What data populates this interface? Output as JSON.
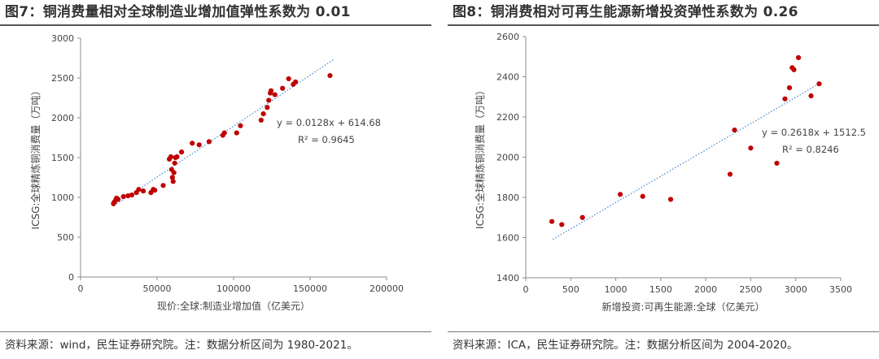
{
  "chart_data": [
    {
      "type": "scatter",
      "title": "图7：铜消费量相对全球制造业增加值弹性系数为 0.01",
      "xlabel": "现价:全球:制造业增加值（亿美元）",
      "ylabel": "ICSG:全球精炼铜消费量（万吨）",
      "xlim": [
        0,
        200000
      ],
      "ylim": [
        0,
        3000
      ],
      "x_ticks": [
        0,
        50000,
        100000,
        150000,
        200000
      ],
      "x_tick_labels": [
        "0",
        "50000",
        "100000",
        "150000",
        "200000"
      ],
      "y_ticks": [
        0,
        500,
        1000,
        1500,
        2000,
        2500,
        3000
      ],
      "y_tick_labels": [
        "0",
        "500",
        "1000",
        "1500",
        "2000",
        "2500",
        "3000"
      ],
      "trend_x_range": [
        22000,
        166000
      ],
      "trendline": {
        "slope": 0.0128,
        "intercept": 614.68
      },
      "equation": "y = 0.0128x + 614.68",
      "r_squared": "R² = 0.9645",
      "series": [
        {
          "name": "铜消费量",
          "color": "#c00000",
          "points": [
            [
              21500,
              920
            ],
            [
              22000,
              940
            ],
            [
              22800,
              960
            ],
            [
              23500,
              990
            ],
            [
              24500,
              975
            ],
            [
              28000,
              1010
            ],
            [
              31000,
              1020
            ],
            [
              33500,
              1030
            ],
            [
              36500,
              1060
            ],
            [
              38000,
              1100
            ],
            [
              41000,
              1080
            ],
            [
              46000,
              1060
            ],
            [
              47500,
              1100
            ],
            [
              48500,
              1090
            ],
            [
              54000,
              1150
            ],
            [
              58000,
              1480
            ],
            [
              59000,
              1510
            ],
            [
              59500,
              1350
            ],
            [
              60000,
              1250
            ],
            [
              60500,
              1200
            ],
            [
              61000,
              1310
            ],
            [
              61500,
              1430
            ],
            [
              62000,
              1500
            ],
            [
              63000,
              1510
            ],
            [
              66000,
              1570
            ],
            [
              73000,
              1680
            ],
            [
              77500,
              1660
            ],
            [
              84000,
              1700
            ],
            [
              93000,
              1780
            ],
            [
              94000,
              1810
            ],
            [
              102000,
              1810
            ],
            [
              104500,
              1900
            ],
            [
              118000,
              1970
            ],
            [
              119500,
              2050
            ],
            [
              122000,
              2130
            ],
            [
              123000,
              2220
            ],
            [
              124000,
              2310
            ],
            [
              124500,
              2340
            ],
            [
              127000,
              2290
            ],
            [
              132000,
              2370
            ],
            [
              136000,
              2490
            ],
            [
              139000,
              2420
            ],
            [
              140500,
              2450
            ],
            [
              163000,
              2530
            ]
          ]
        }
      ]
    },
    {
      "type": "scatter",
      "title": "图8：铜消费相对可再生能源新增投资弹性系数为 0.26",
      "xlabel": "新增投资:可再生能源:全球（亿美元）",
      "ylabel": "ICSG:全球精炼铜消费量（万吨）",
      "xlim": [
        0,
        3500
      ],
      "ylim": [
        1400,
        2600
      ],
      "x_ticks": [
        0,
        500,
        1000,
        1500,
        2000,
        2500,
        3000,
        3500
      ],
      "x_tick_labels": [
        "0",
        "500",
        "1000",
        "1500",
        "2000",
        "2500",
        "3000",
        "3500"
      ],
      "y_ticks": [
        1400,
        1600,
        1800,
        2000,
        2200,
        2400,
        2600
      ],
      "y_tick_labels": [
        "1400",
        "1600",
        "1800",
        "2000",
        "2200",
        "2400",
        "2600"
      ],
      "trend_x_range": [
        300,
        3270
      ],
      "trendline": {
        "slope": 0.2618,
        "intercept": 1512.5
      },
      "equation": "y = 0.2618x + 1512.5",
      "r_squared": "R² = 0.8246",
      "series": [
        {
          "name": "铜消费量",
          "color": "#c00000",
          "points": [
            [
              290,
              1680
            ],
            [
              400,
              1665
            ],
            [
              630,
              1700
            ],
            [
              1050,
              1815
            ],
            [
              1300,
              1805
            ],
            [
              1610,
              1790
            ],
            [
              2270,
              1915
            ],
            [
              2320,
              2135
            ],
            [
              2500,
              2045
            ],
            [
              2790,
              1970
            ],
            [
              2880,
              2290
            ],
            [
              2930,
              2345
            ],
            [
              2960,
              2445
            ],
            [
              2980,
              2435
            ],
            [
              3030,
              2495
            ],
            [
              3170,
              2305
            ],
            [
              3260,
              2365
            ]
          ]
        }
      ]
    }
  ],
  "sources": [
    "资料来源：wind，民生证券研究院。注：数据分析区间为 1980-2021。",
    "资料来源：ICA，民生证券研究院。注：数据分析区间为 2004-2020。"
  ]
}
